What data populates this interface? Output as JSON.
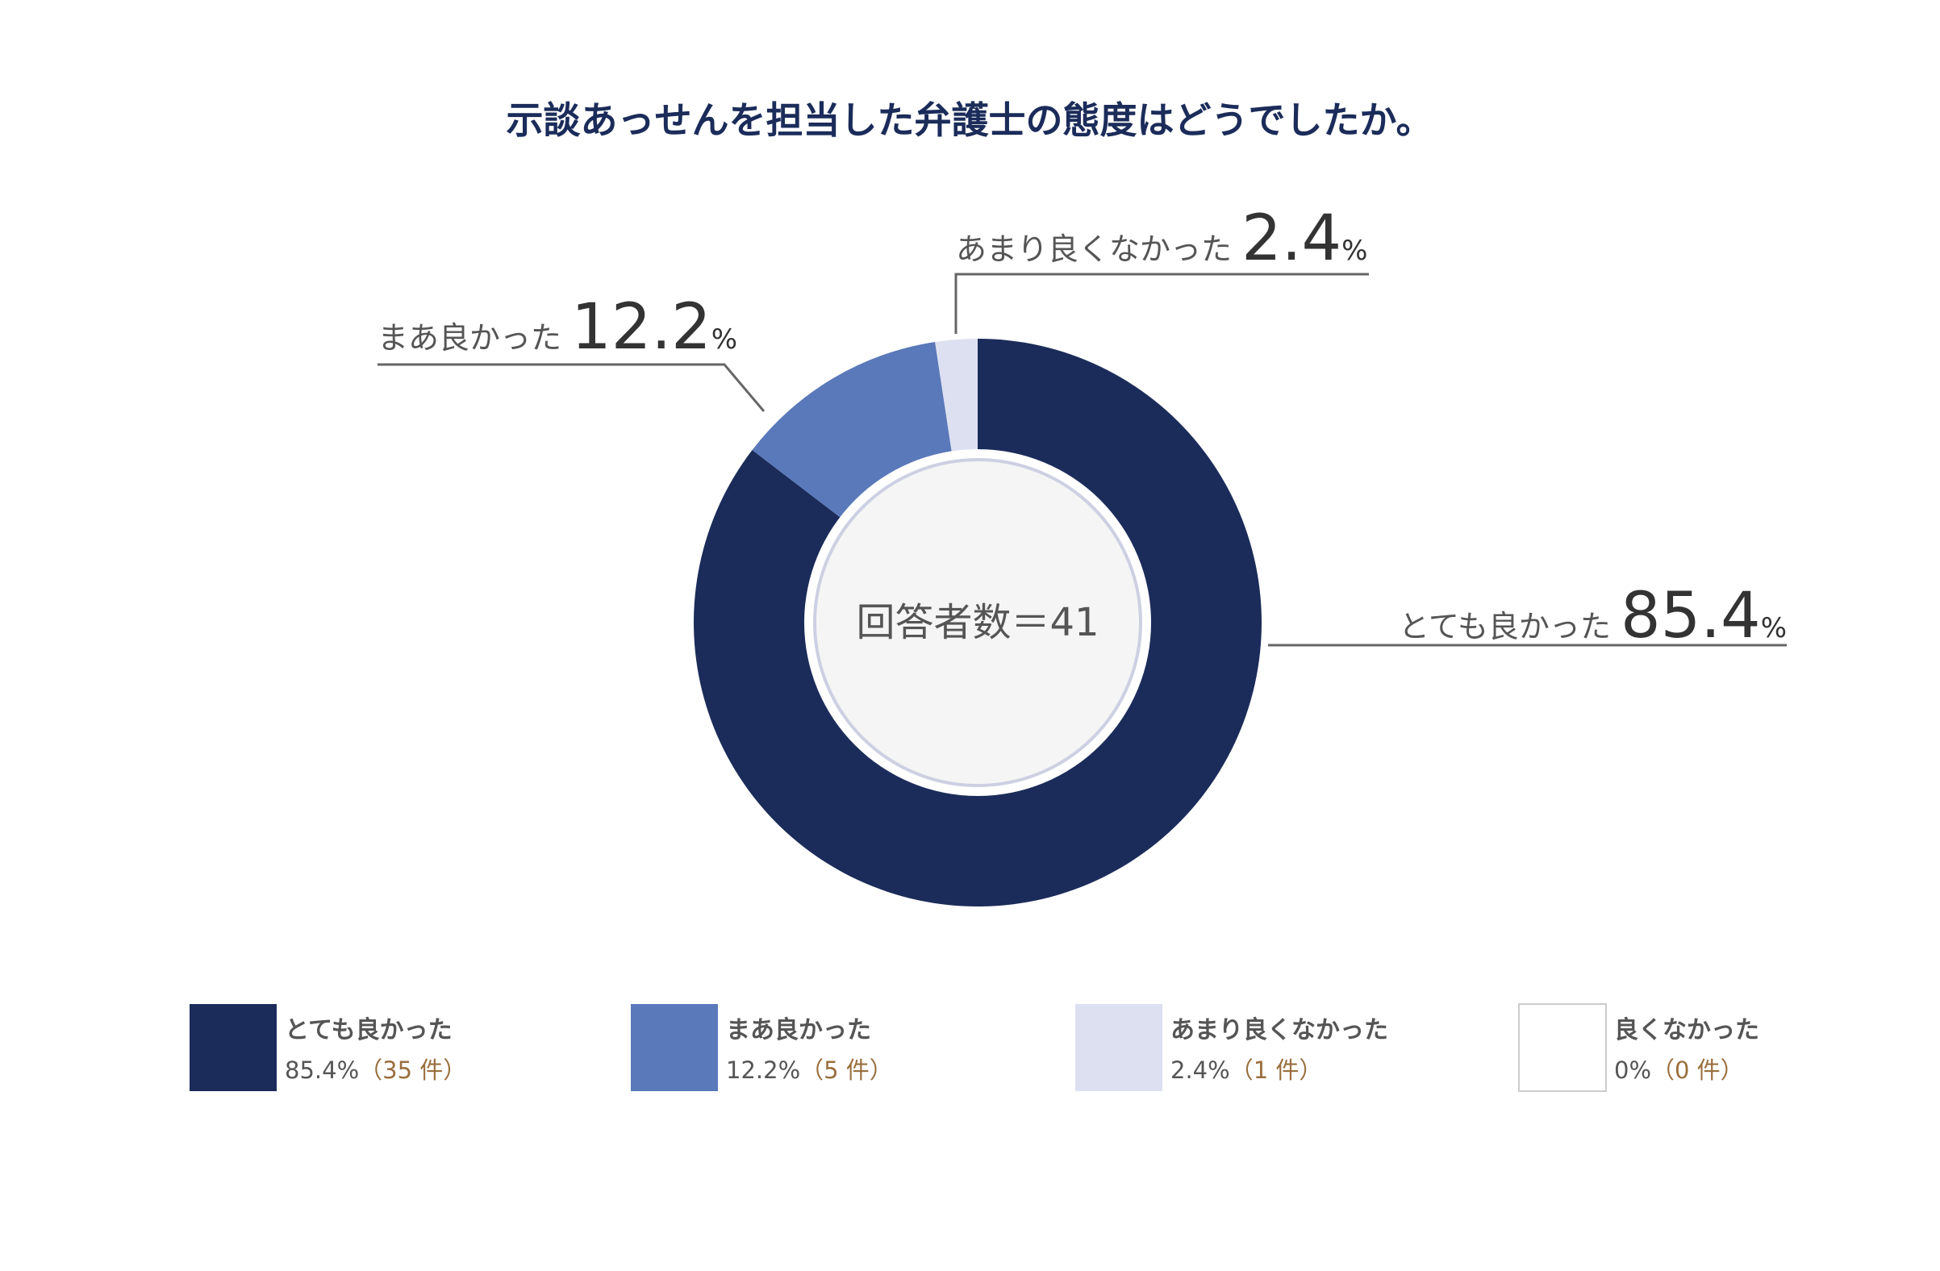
{
  "chart_data": {
    "type": "pie",
    "title": "示談あっせんを担当した弁護士の態度はどうでしたか。",
    "center_label": "回答者数＝41",
    "unit": "%",
    "count_unit": "件",
    "slices": [
      {
        "label": "とても良かった",
        "value": 85.4,
        "value_text": "85.4",
        "count": 35,
        "count_text": "（35 件）",
        "color": "#1b2c5a"
      },
      {
        "label": "まあ良かった",
        "value": 12.2,
        "value_text": "12.2",
        "count": 5,
        "count_text": "（5 件）",
        "color": "#5a79ba"
      },
      {
        "label": "あまり良くなかった",
        "value": 2.4,
        "value_text": "2.4",
        "count": 1,
        "count_text": "（1 件）",
        "color": "#dde0f0"
      },
      {
        "label": "良くなかった",
        "value": 0,
        "value_text": "0",
        "count": 0,
        "count_text": "（0 件）",
        "color": "#ffffff"
      }
    ],
    "legend_placement": "bottom"
  },
  "colors": {
    "title": "#1b2c5a",
    "center_fill": "#f5f5f5",
    "center_ring": "#cdd0e2",
    "leader_line": "#666666",
    "count_text": "#9a6f3e"
  }
}
